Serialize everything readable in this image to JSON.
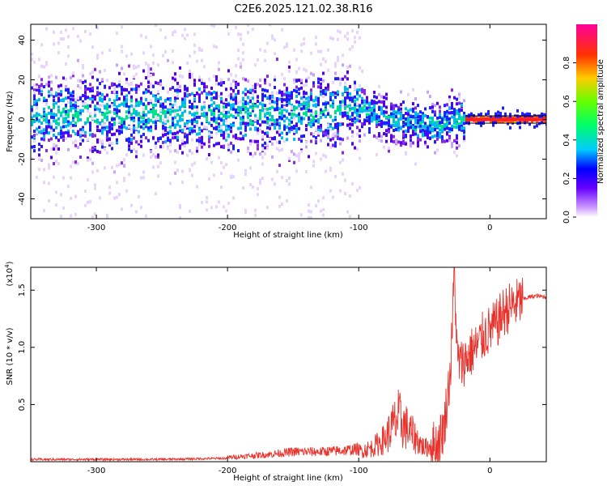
{
  "title": "C2E6.2025.121.02.38.R16",
  "chart_data": [
    {
      "type": "heatmap",
      "title": "",
      "xlabel": "Height of straight line (km)",
      "ylabel": "Frequency (Hz)",
      "xlim": [
        -350,
        43
      ],
      "ylim": [
        -50,
        48
      ],
      "x_ticks": [
        -300,
        -200,
        -100,
        0
      ],
      "y_ticks": [
        -40,
        -20,
        0,
        20,
        40
      ],
      "colorbar": {
        "label": "Normalized spectral amplitude",
        "range": [
          0,
          1
        ],
        "ticks": [
          0.0,
          0.2,
          0.4,
          0.6,
          0.8
        ],
        "colors": [
          "#ffffff",
          "#9933ff",
          "#3300ff",
          "#00ccff",
          "#00ff33",
          "#ffff00",
          "#ff6600",
          "#ff0000",
          "#ff00aa"
        ]
      },
      "centerline": [
        {
          "x": -350,
          "y": 2
        },
        {
          "x": -250,
          "y": 2
        },
        {
          "x": -150,
          "y": 3
        },
        {
          "x": -100,
          "y": 6
        },
        {
          "x": -80,
          "y": 0
        },
        {
          "x": -60,
          "y": -2
        },
        {
          "x": -40,
          "y": -3
        },
        {
          "x": -25,
          "y": 0
        },
        {
          "x": 0,
          "y": 0
        },
        {
          "x": 43,
          "y": 0
        }
      ],
      "grid": false
    },
    {
      "type": "line",
      "title": "",
      "xlabel": "Height of straight line (km)",
      "ylabel": "SNR (10 * v/v)",
      "scale_label": "(x10",
      "scale_exp": "4",
      "scale_close": ")",
      "xlim": [
        -350,
        43
      ],
      "ylim": [
        0,
        1.7
      ],
      "x_ticks": [
        -300,
        -200,
        -100,
        0
      ],
      "y_ticks": [
        0.5,
        1.0,
        1.5
      ],
      "y_tick_labels": [
        "0.5",
        "1.0",
        "1.5"
      ],
      "series": [
        {
          "color": "#e8322b",
          "x": [
            -350,
            -300,
            -250,
            -200,
            -170,
            -150,
            -130,
            -110,
            -100,
            -90,
            -80,
            -70,
            -60,
            -50,
            -40,
            -35,
            -30,
            -27,
            -25,
            -22,
            -18,
            -15,
            -10,
            -5,
            0,
            5,
            10,
            15,
            20,
            25,
            30,
            35,
            43
          ],
          "y": [
            0.02,
            0.02,
            0.02,
            0.03,
            0.05,
            0.07,
            0.07,
            0.08,
            0.09,
            0.12,
            0.2,
            0.38,
            0.25,
            0.12,
            0.15,
            0.3,
            0.8,
            1.68,
            0.9,
            0.85,
            0.9,
            0.95,
            1.0,
            1.1,
            1.15,
            1.2,
            1.3,
            1.35,
            1.38,
            1.42,
            1.44,
            1.45,
            1.44
          ]
        }
      ],
      "grid": false
    }
  ]
}
